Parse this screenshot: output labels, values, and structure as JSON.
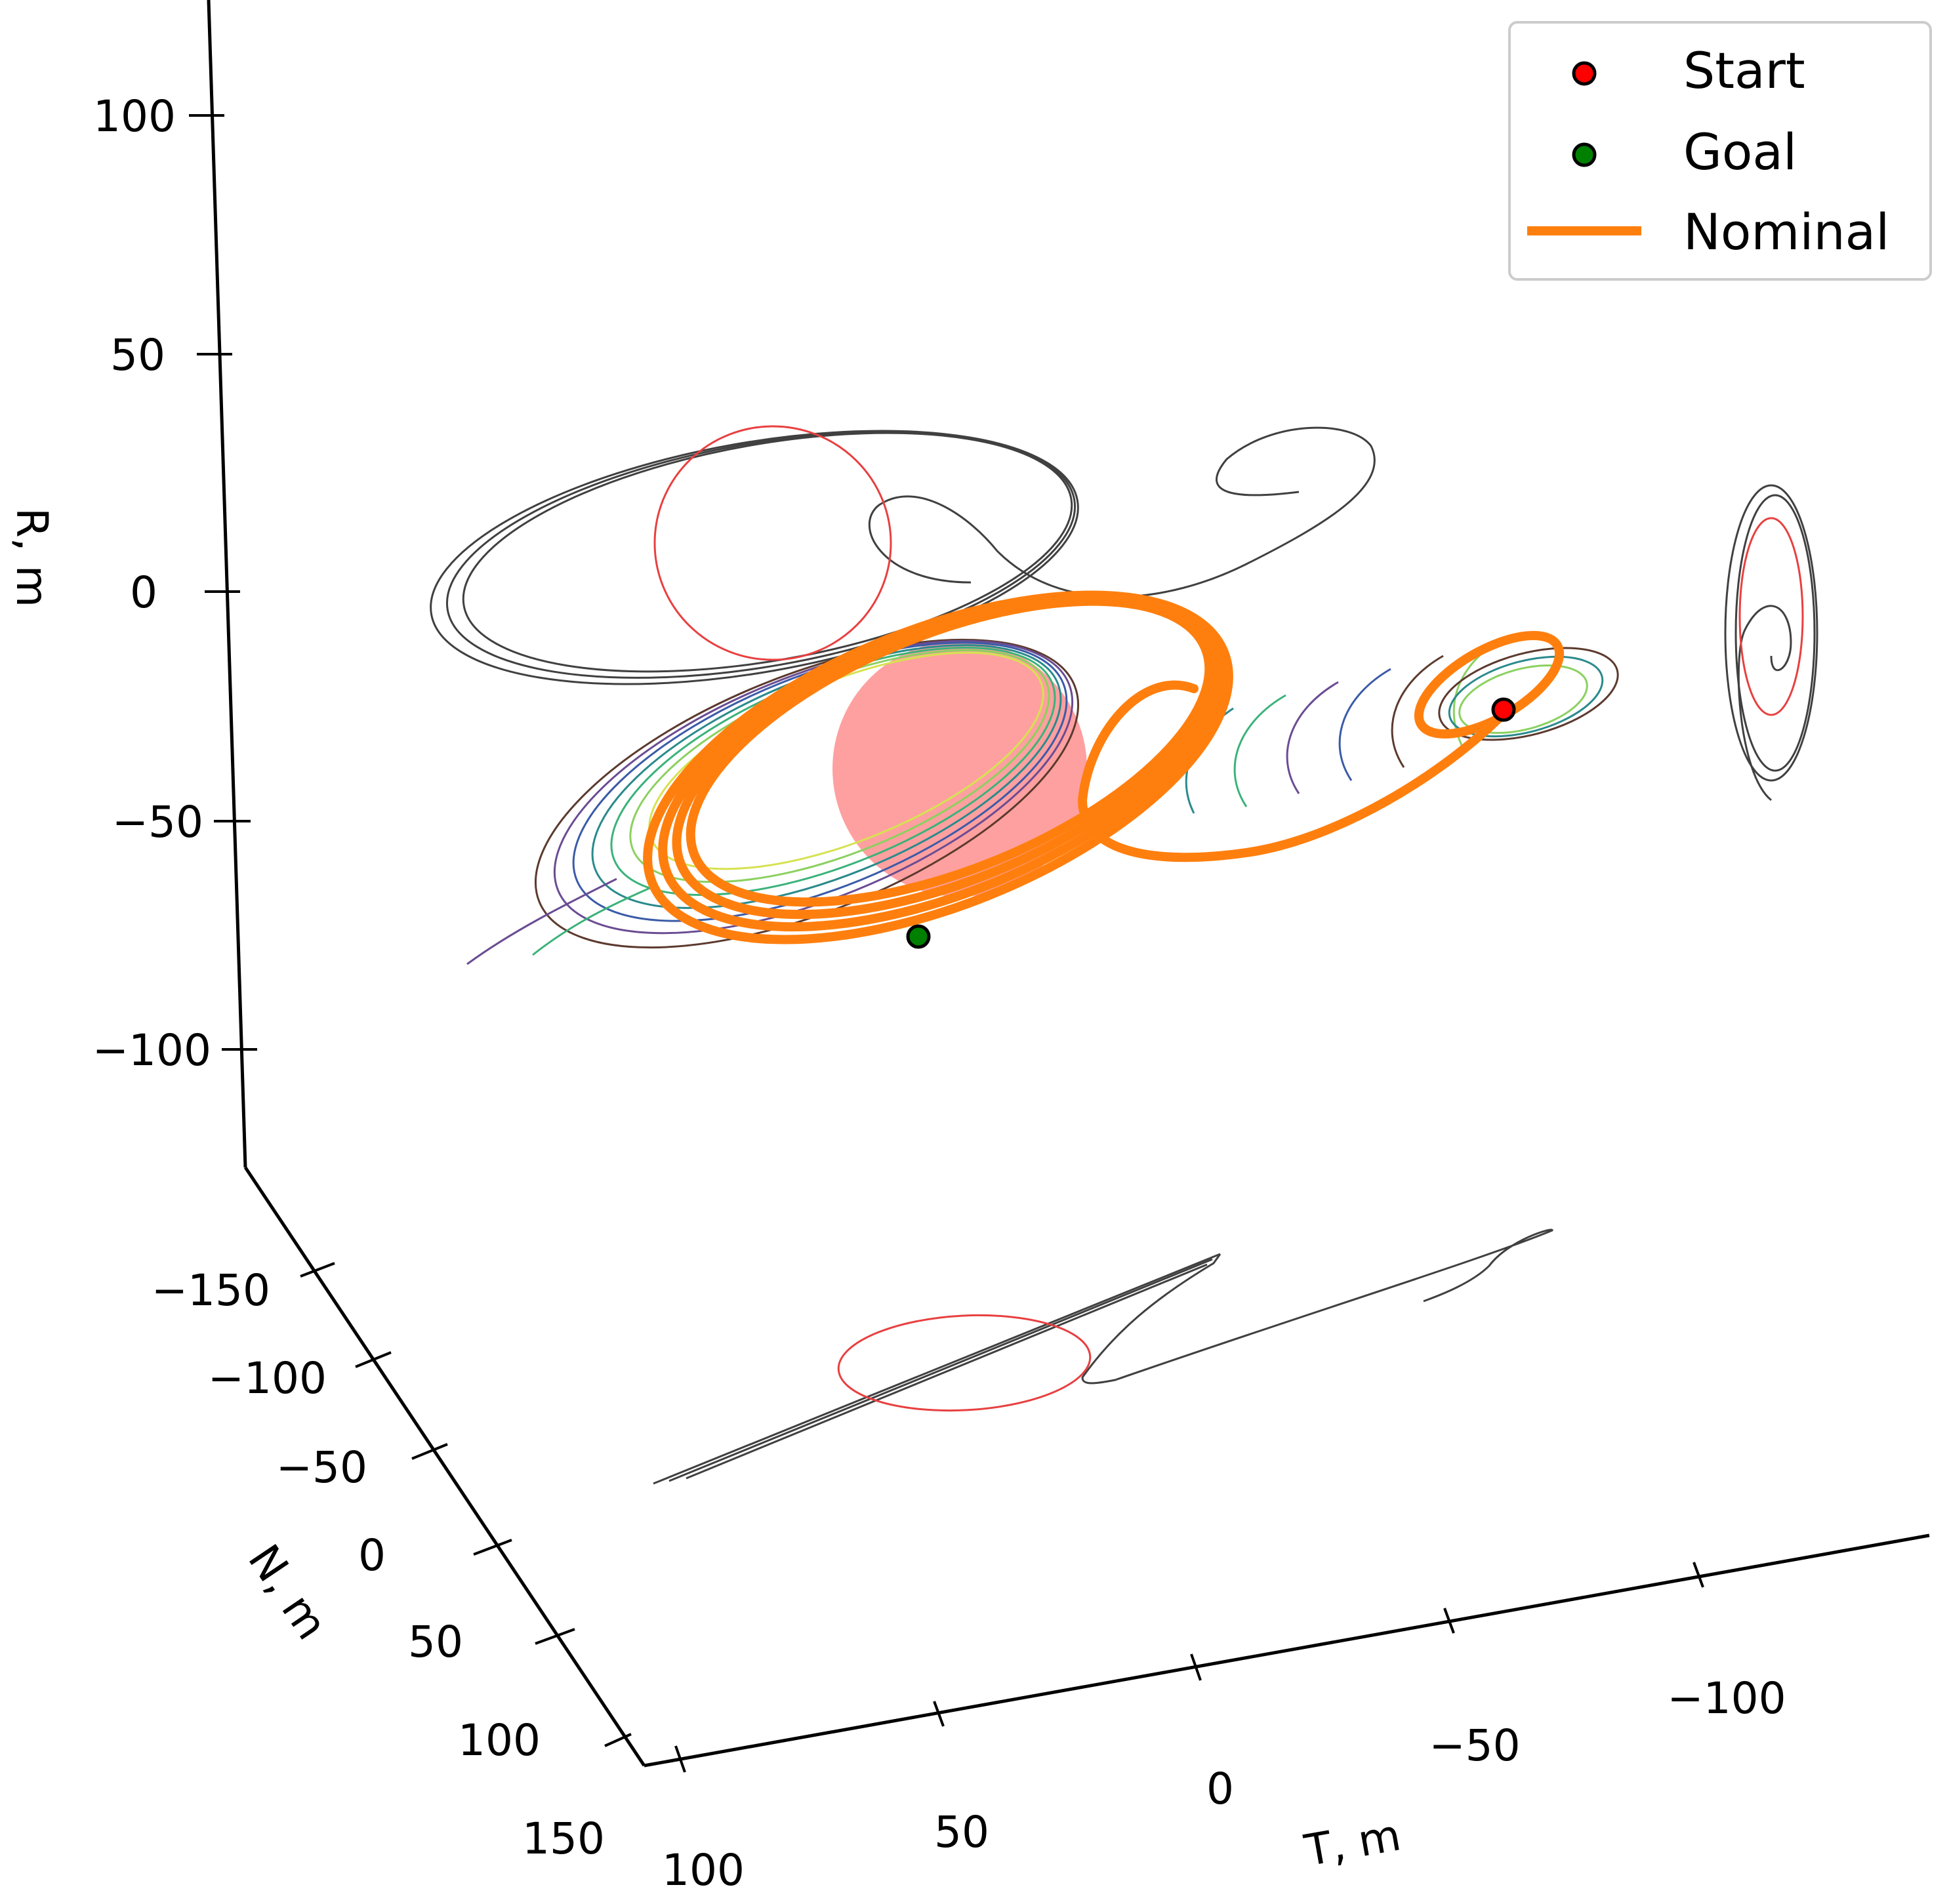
{
  "chart_data": {
    "type": "line",
    "dimensions": "3d",
    "axes": {
      "R": {
        "label": "R, m",
        "ticks": [
          100,
          50,
          0,
          -50,
          -100
        ],
        "tick_labels": [
          "100",
          "50",
          "0",
          "−50",
          "−100"
        ]
      },
      "N": {
        "label": "N, m",
        "ticks": [
          -150,
          -100,
          -50,
          0,
          50,
          100,
          150
        ],
        "tick_labels": [
          "−150",
          "−100",
          "−50",
          "0",
          "50",
          "100",
          "150"
        ]
      },
      "T": {
        "label": "T, m",
        "ticks": [
          100,
          50,
          0,
          -50,
          -100
        ],
        "tick_labels": [
          "100",
          "50",
          "0",
          "−50",
          "−100"
        ]
      }
    },
    "legend": {
      "placement": "top-right",
      "entries": [
        {
          "label": "Start",
          "kind": "marker",
          "color": "#ff0000"
        },
        {
          "label": "Goal",
          "kind": "marker",
          "color": "#008000"
        },
        {
          "label": "Nominal",
          "kind": "line",
          "color": "#ff7f0e"
        }
      ]
    },
    "colors": {
      "nominal": "#ff7f0e",
      "projection": "#404040",
      "projection_obstacle": "#e84040",
      "obstacle": "#ffa0a0"
    }
  }
}
